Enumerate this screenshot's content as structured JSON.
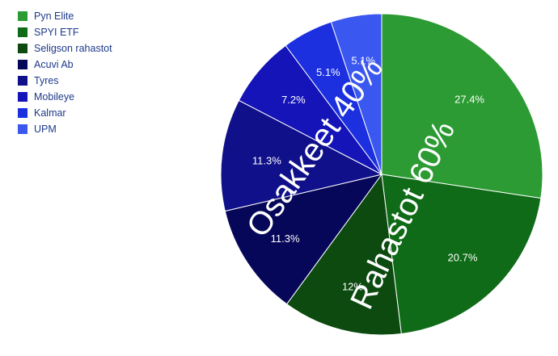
{
  "chart_data": {
    "type": "pie",
    "title": "",
    "legend_position": "top-left",
    "start_angle_deg": 0,
    "direction": "clockwise",
    "slices": [
      {
        "name": "Pyn Elite",
        "value": 27.4,
        "label": "27.4%",
        "color": "#2c9b33"
      },
      {
        "name": "SPYI ETF",
        "value": 20.7,
        "label": "20.7%",
        "color": "#0f6b17"
      },
      {
        "name": "Seligson rahastot",
        "value": 12.0,
        "label": "12%",
        "color": "#0c4a10"
      },
      {
        "name": "Acuvi Ab",
        "value": 11.3,
        "label": "11.3%",
        "color": "#07075a"
      },
      {
        "name": "Tyres",
        "value": 11.3,
        "label": "11.3%",
        "color": "#10108a"
      },
      {
        "name": "Mobileye",
        "value": 7.2,
        "label": "7.2%",
        "color": "#1414b8"
      },
      {
        "name": "Kalmar",
        "value": 5.1,
        "label": "5.1%",
        "color": "#1c30e0"
      },
      {
        "name": "UPM",
        "value": 5.1,
        "label": "5.1%",
        "color": "#3a57f0"
      }
    ],
    "annotations": [
      {
        "text": "Rahastot 60%",
        "rotation_deg": -65
      },
      {
        "text": "Osakkeet 40%",
        "rotation_deg": -55
      }
    ]
  }
}
